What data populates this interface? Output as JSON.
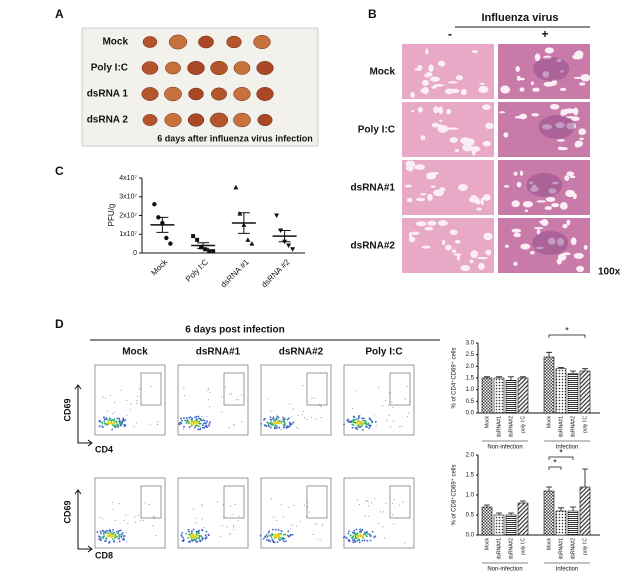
{
  "figure": {
    "A": {
      "label": "A",
      "rows": [
        "Mock",
        "Poly I:C",
        "dsRNA 1",
        "dsRNA 2"
      ],
      "caption": "6 days after influenza virus infection"
    },
    "B": {
      "label": "B",
      "title": "Influenza virus",
      "columns": [
        "-",
        "+"
      ],
      "rows": [
        "Mock",
        "Poly I:C",
        "dsRNA#1",
        "dsRNA#2"
      ],
      "magnification": "100x"
    },
    "C": {
      "label": "C"
    },
    "D": {
      "label": "D",
      "title": "6 days post infection",
      "columns": [
        "Mock",
        "dsRNA#1",
        "dsRNA#2",
        "Poly I:C"
      ],
      "y_axis": "CD69",
      "x_axes": [
        "CD4",
        "CD8"
      ]
    }
  },
  "chart_data": [
    {
      "type": "scatter",
      "ylabel": "PFU/g",
      "categories": [
        "Mock",
        "Poly I:C",
        "dsRNA #1",
        "dsRNA #2"
      ],
      "points": [
        [
          26000000,
          19000000,
          16000000,
          8000000,
          5000000
        ],
        [
          9000000,
          7000000,
          3000000,
          2000000,
          1000000,
          1000000
        ],
        [
          35000000,
          21000000,
          15000000,
          7000000,
          5000000
        ],
        [
          20000000,
          12000000,
          6000000,
          4000000,
          2000000
        ]
      ],
      "means": [
        15000000,
        4000000,
        16000000,
        9000000
      ],
      "errors": [
        4000000,
        1500000,
        5500000,
        3000000
      ],
      "ylim": [
        0,
        40000000
      ],
      "yticks": [
        0,
        {
          "value": 10000000,
          "label": "1x10⁷"
        },
        {
          "value": 20000000,
          "label": "2x10⁷"
        },
        {
          "value": 30000000,
          "label": "3x10⁷"
        },
        {
          "value": 40000000,
          "label": "4x10⁷"
        }
      ]
    },
    {
      "type": "bar",
      "ylabel": "% of CD4⁺CD69⁺ cells",
      "categories": [
        "Mock",
        "dsRNA#1",
        "dsRNA#2",
        "poly I:C",
        "Mock",
        "dsRNA#1",
        "dsRNA#2",
        "poly I:C"
      ],
      "groups": [
        "Non-infection",
        "Infection"
      ],
      "values": [
        1.5,
        1.5,
        1.4,
        1.5,
        2.4,
        1.9,
        1.7,
        1.8
      ],
      "errors": [
        0.05,
        0.05,
        0.15,
        0.05,
        0.2,
        0.05,
        0.1,
        0.1
      ],
      "annotations": [
        "*"
      ],
      "ylim": [
        0,
        3
      ],
      "yticks": [
        {
          "value": 0,
          "label": "0.0"
        },
        0.5,
        {
          "value": 1,
          "label": "1.0"
        },
        1.5,
        {
          "value": 2,
          "label": "2.0"
        },
        2.5,
        {
          "value": 3,
          "label": "3.0"
        }
      ]
    },
    {
      "type": "bar",
      "ylabel": "% of CD8⁺CD69⁺ cells",
      "categories": [
        "Mock",
        "dsRNA#1",
        "dsRNA#2",
        "poly I:C",
        "Mock",
        "dsRNA#1",
        "dsRNA#2",
        "poly I:C"
      ],
      "groups": [
        "Non-infection",
        "Infection"
      ],
      "values": [
        0.7,
        0.5,
        0.5,
        0.8,
        1.1,
        0.6,
        0.6,
        1.2
      ],
      "errors": [
        0.05,
        0.05,
        0.05,
        0.05,
        0.1,
        0.08,
        0.1,
        0.45
      ],
      "annotations": [
        "*",
        "*"
      ],
      "ylim": [
        0,
        2
      ],
      "yticks": [
        {
          "value": 0,
          "label": "0.0"
        },
        0.5,
        {
          "value": 1,
          "label": "1.0"
        },
        1.5,
        {
          "value": 2,
          "label": "2.0"
        }
      ]
    }
  ]
}
